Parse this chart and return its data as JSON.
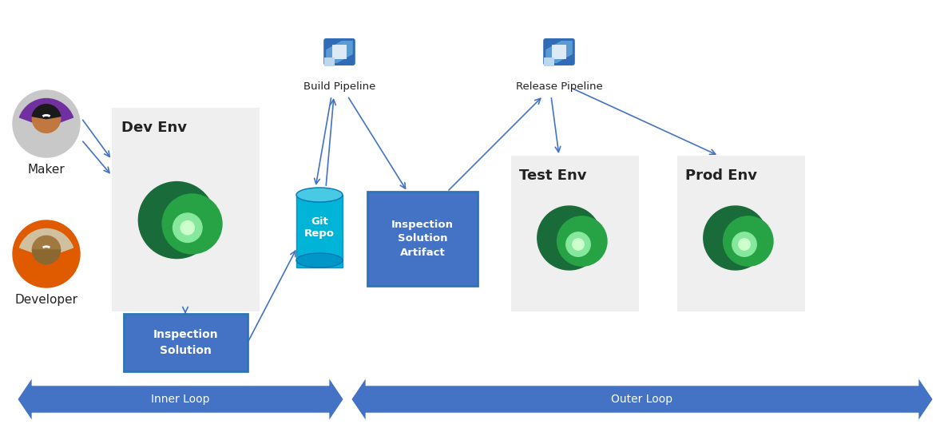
{
  "fig_width": 11.92,
  "fig_height": 5.46,
  "bg_color": "#ffffff",
  "arrow_color": "#4472C4",
  "box_color": "#4472C4",
  "loop_color": "#4472C4",
  "env_box_color": "#efefef",
  "maker_label": "Maker",
  "developer_label": "Developer",
  "dev_env_label": "Dev Env",
  "inspection_solution_label": "Inspection\nSolution",
  "git_repo_label": "Git\nRepo",
  "build_pipeline_label": "Build Pipeline",
  "inspection_artifact_label": "Inspection\nSolution\nArtifact",
  "release_pipeline_label": "Release Pipeline",
  "test_env_label": "Test Env",
  "prod_env_label": "Prod Env",
  "inner_loop_label": "Inner Loop",
  "outer_loop_label": "Outer Loop"
}
